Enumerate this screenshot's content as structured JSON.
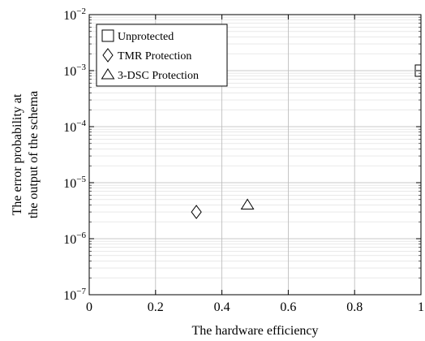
{
  "chart_data": {
    "type": "scatter",
    "title": "",
    "xlabel": "The hardware efficiency",
    "ylabel_lines": [
      "The error probability at",
      "the output of the schema"
    ],
    "xlim": [
      0,
      1
    ],
    "ylim": [
      1e-07,
      0.01
    ],
    "yscale": "log",
    "grid": true,
    "legend_position": "top-left",
    "x_ticks": [
      {
        "value": 0,
        "label": "0"
      },
      {
        "value": 0.2,
        "label": "0.2"
      },
      {
        "value": 0.4,
        "label": "0.4"
      },
      {
        "value": 0.6,
        "label": "0.6"
      },
      {
        "value": 0.8,
        "label": "0.8"
      },
      {
        "value": 1,
        "label": "1"
      }
    ],
    "y_ticks": [
      {
        "value": 1e-07,
        "base": "10",
        "exp": "−7"
      },
      {
        "value": 1e-06,
        "base": "10",
        "exp": "−6"
      },
      {
        "value": 1e-05,
        "base": "10",
        "exp": "−5"
      },
      {
        "value": 0.0001,
        "base": "10",
        "exp": "−4"
      },
      {
        "value": 0.001,
        "base": "10",
        "exp": "−3"
      },
      {
        "value": 0.01,
        "base": "10",
        "exp": "−2"
      }
    ],
    "series": [
      {
        "name": "Unprotected",
        "marker": "square",
        "points": [
          {
            "x": 1.0,
            "y": 0.001
          }
        ]
      },
      {
        "name": "TMR Protection",
        "marker": "diamond",
        "points": [
          {
            "x": 0.323,
            "y": 3e-06
          }
        ]
      },
      {
        "name": "3-DSC Protection",
        "marker": "triangle",
        "points": [
          {
            "x": 0.477,
            "y": 4e-06
          }
        ]
      }
    ]
  }
}
